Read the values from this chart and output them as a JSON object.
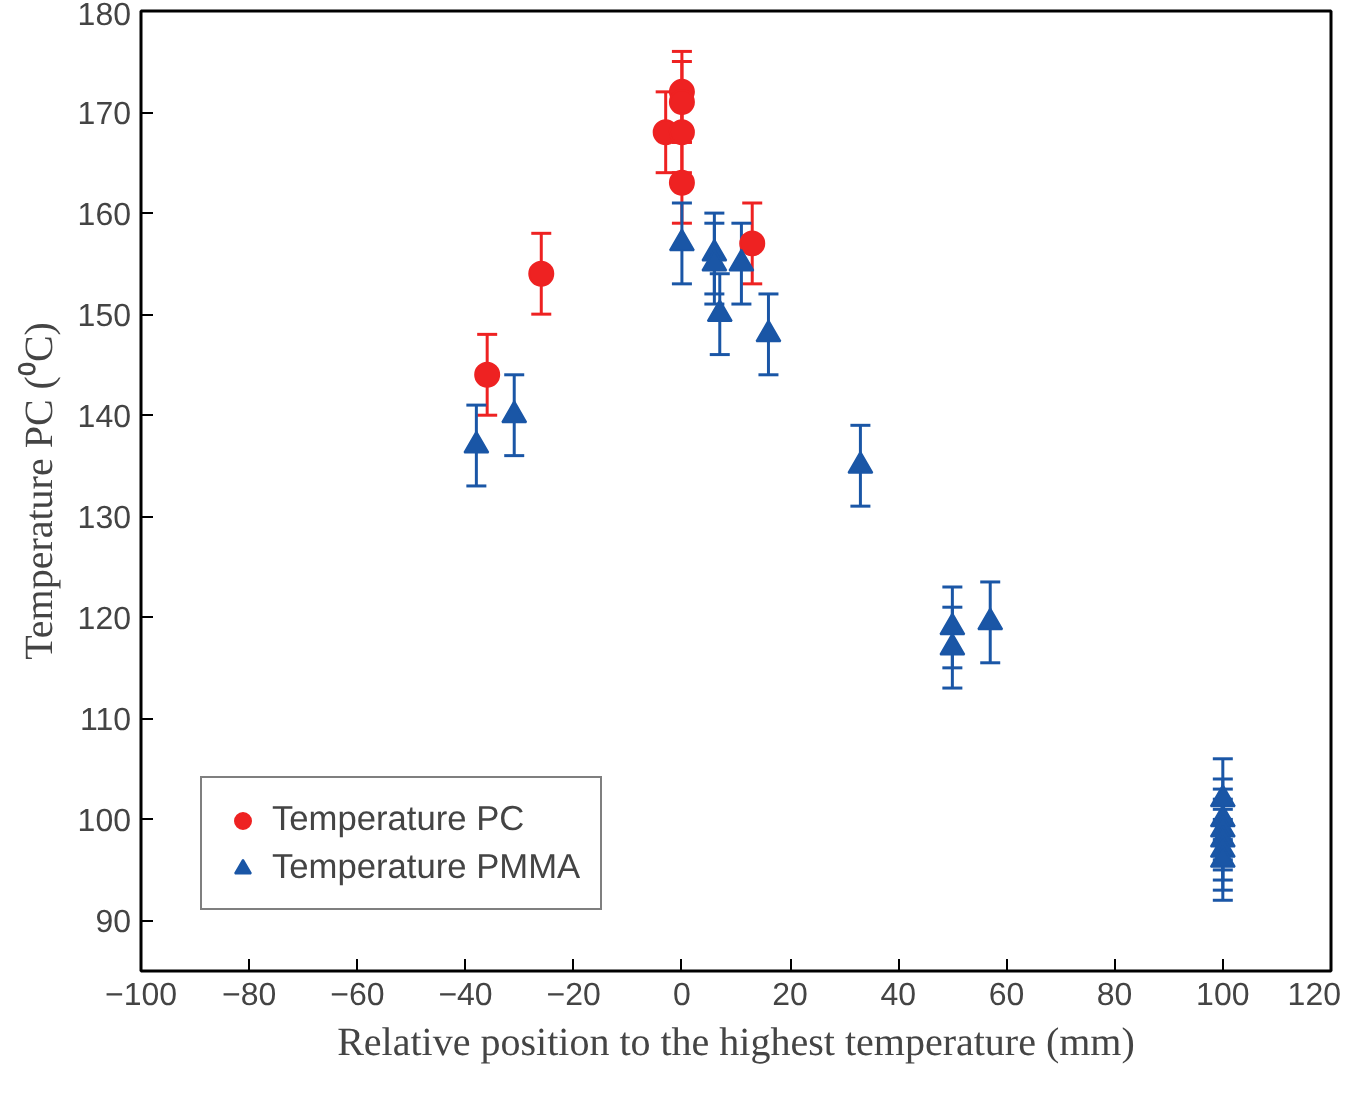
{
  "chart_data": {
    "type": "scatter",
    "xlabel": "Relative position to the highest temperature (mm)",
    "ylabel": "Temperature PC (⁰C)",
    "xlim": [
      -100,
      120
    ],
    "ylim": [
      85,
      180
    ],
    "xticks": [
      -100,
      -80,
      -60,
      -40,
      -20,
      0,
      20,
      40,
      60,
      80,
      100,
      120
    ],
    "yticks": [
      90,
      100,
      110,
      120,
      130,
      140,
      150,
      160,
      170,
      180
    ],
    "legend": "bottom left",
    "grid": false,
    "series": [
      {
        "name": "Temperature PC",
        "color": "#ee2222",
        "marker": "circle",
        "x": [
          -36,
          -26,
          -3,
          0,
          0,
          0,
          0,
          13
        ],
        "values": [
          144,
          154,
          168,
          168,
          172,
          171,
          163,
          157
        ],
        "errors": [
          4,
          4,
          4,
          4,
          4,
          4,
          4,
          4
        ]
      },
      {
        "name": "Temperature PMMA",
        "color": "#1a56a6",
        "marker": "triangle",
        "x": [
          -38,
          -31,
          0,
          6,
          6,
          7,
          11,
          16,
          33,
          50,
          50,
          57,
          100,
          100,
          100,
          100,
          100,
          100
        ],
        "values": [
          137,
          140,
          157,
          156,
          155,
          150,
          155,
          148,
          135,
          119,
          117,
          119.5,
          102,
          100,
          99,
          98,
          97,
          96
        ],
        "errors": [
          4,
          4,
          4,
          4,
          4,
          4,
          4,
          4,
          4,
          4,
          4,
          4,
          4,
          4,
          4,
          4,
          4,
          4
        ]
      }
    ]
  }
}
